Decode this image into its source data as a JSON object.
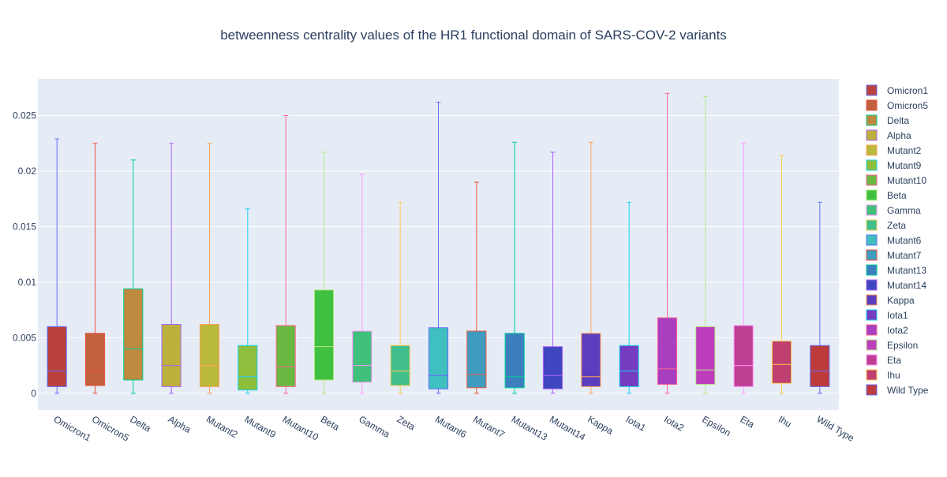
{
  "chart_data": {
    "type": "box",
    "title": "betweenness centrality values of the HR1 functional domain of SARS-COV-2 variants",
    "xlabel": "",
    "ylabel": "",
    "ylim": [
      -0.0015,
      0.0283
    ],
    "yticks": [
      0,
      0.005,
      0.01,
      0.015,
      0.02,
      0.025
    ],
    "ytick_labels": [
      "0",
      "0.005",
      "0.01",
      "0.015",
      "0.02",
      "0.025"
    ],
    "grid": true,
    "legend_position": "right",
    "series": [
      {
        "name": "Omicron1",
        "min": 0,
        "q1": 0.0006,
        "median": 0.002,
        "q3": 0.006,
        "max": 0.0229,
        "color": "#b9413e",
        "line_color": "#636efa"
      },
      {
        "name": "Omicron5",
        "min": 0,
        "q1": 0.0007,
        "median": 0.002,
        "q3": 0.0054,
        "max": 0.0225,
        "color": "#c0603f",
        "line_color": "#ef553b"
      },
      {
        "name": "Delta",
        "min": 0,
        "q1": 0.0012,
        "median": 0.004,
        "q3": 0.0094,
        "max": 0.021,
        "color": "#be8a3f",
        "line_color": "#00cc96"
      },
      {
        "name": "Alpha",
        "min": 0,
        "q1": 0.0006,
        "median": 0.0025,
        "q3": 0.0062,
        "max": 0.0225,
        "color": "#bcb03d",
        "line_color": "#ab63fa"
      },
      {
        "name": "Mutant2",
        "min": 0,
        "q1": 0.0006,
        "median": 0.0025,
        "q3": 0.0062,
        "max": 0.0225,
        "color": "#b9b93c",
        "line_color": "#ffa15a"
      },
      {
        "name": "Mutant9",
        "min": 0,
        "q1": 0.0003,
        "median": 0.0015,
        "q3": 0.0043,
        "max": 0.0166,
        "color": "#8dbe3c",
        "line_color": "#19d3f3"
      },
      {
        "name": "Mutant10",
        "min": 0,
        "q1": 0.0006,
        "median": 0.0024,
        "q3": 0.0061,
        "max": 0.025,
        "color": "#6ab842",
        "line_color": "#ff6692"
      },
      {
        "name": "Beta",
        "min": 0,
        "q1": 0.0012,
        "median": 0.0042,
        "q3": 0.0093,
        "max": 0.0217,
        "color": "#40c040",
        "line_color": "#b6e880"
      },
      {
        "name": "Gamma",
        "min": 0,
        "q1": 0.001,
        "median": 0.0025,
        "q3": 0.0056,
        "max": 0.0197,
        "color": "#40c07a",
        "line_color": "#ff97ff"
      },
      {
        "name": "Zeta",
        "min": 0,
        "q1": 0.0007,
        "median": 0.002,
        "q3": 0.0043,
        "max": 0.0172,
        "color": "#40bf8c",
        "line_color": "#fecb52"
      },
      {
        "name": "Mutant6",
        "min": 0,
        "q1": 0.0004,
        "median": 0.0016,
        "q3": 0.0059,
        "max": 0.0262,
        "color": "#3fbfbf",
        "line_color": "#636efa"
      },
      {
        "name": "Mutant7",
        "min": 0,
        "q1": 0.0005,
        "median": 0.0017,
        "q3": 0.0056,
        "max": 0.019,
        "color": "#3f9cbf",
        "line_color": "#ef553b"
      },
      {
        "name": "Mutant13",
        "min": 0,
        "q1": 0.0005,
        "median": 0.0015,
        "q3": 0.0054,
        "max": 0.0226,
        "color": "#3c7fbf",
        "line_color": "#00cc96"
      },
      {
        "name": "Mutant14",
        "min": 0,
        "q1": 0.0004,
        "median": 0.0016,
        "q3": 0.0042,
        "max": 0.0217,
        "color": "#3f46bf",
        "line_color": "#ab63fa"
      },
      {
        "name": "Kappa",
        "min": 0,
        "q1": 0.0006,
        "median": 0.0015,
        "q3": 0.0054,
        "max": 0.0226,
        "color": "#5a3ebd",
        "line_color": "#ffa15a"
      },
      {
        "name": "Iota1",
        "min": 0,
        "q1": 0.0006,
        "median": 0.002,
        "q3": 0.0043,
        "max": 0.0172,
        "color": "#743dbf",
        "line_color": "#19d3f3"
      },
      {
        "name": "Iota2",
        "min": 0,
        "q1": 0.0008,
        "median": 0.0022,
        "q3": 0.0068,
        "max": 0.027,
        "color": "#a73fbf",
        "line_color": "#ff6692"
      },
      {
        "name": "Epsilon",
        "min": 0,
        "q1": 0.0008,
        "median": 0.0021,
        "q3": 0.006,
        "max": 0.0267,
        "color": "#bd3ebd",
        "line_color": "#b6e880"
      },
      {
        "name": "Eta",
        "min": 0,
        "q1": 0.0006,
        "median": 0.0025,
        "q3": 0.0061,
        "max": 0.0225,
        "color": "#bf3f94",
        "line_color": "#ff97ff"
      },
      {
        "name": "Ihu",
        "min": 0,
        "q1": 0.0009,
        "median": 0.0026,
        "q3": 0.0047,
        "max": 0.0214,
        "color": "#bf3f70",
        "line_color": "#fecb52"
      },
      {
        "name": "Wild Type",
        "min": 0,
        "q1": 0.0006,
        "median": 0.002,
        "q3": 0.0043,
        "max": 0.0172,
        "color": "#bd3b3b",
        "line_color": "#636efa"
      }
    ]
  }
}
